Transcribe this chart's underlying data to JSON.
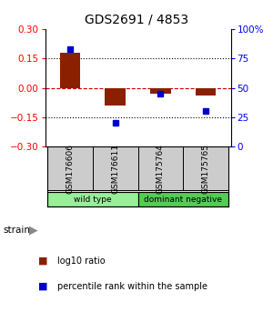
{
  "title": "GDS2691 / 4853",
  "samples": [
    "GSM176606",
    "GSM176611",
    "GSM175764",
    "GSM175765"
  ],
  "log10_ratio": [
    0.18,
    -0.09,
    -0.03,
    -0.04
  ],
  "percentile_rank": [
    83,
    20,
    45,
    30
  ],
  "groups": [
    {
      "label": "wild type",
      "samples": [
        0,
        1
      ],
      "color": "#99ee99"
    },
    {
      "label": "dominant negative",
      "samples": [
        2,
        3
      ],
      "color": "#55cc55"
    }
  ],
  "ylim_left": [
    -0.3,
    0.3
  ],
  "ylim_right": [
    0,
    100
  ],
  "yticks_left": [
    -0.3,
    -0.15,
    0,
    0.15,
    0.3
  ],
  "yticks_right": [
    0,
    25,
    50,
    75,
    100
  ],
  "bar_color": "#8b2000",
  "dot_color": "#0000cc",
  "zero_line_color": "#cc0000",
  "title_fontsize": 10,
  "tick_fontsize": 7.5,
  "ann_fontsize": 7
}
